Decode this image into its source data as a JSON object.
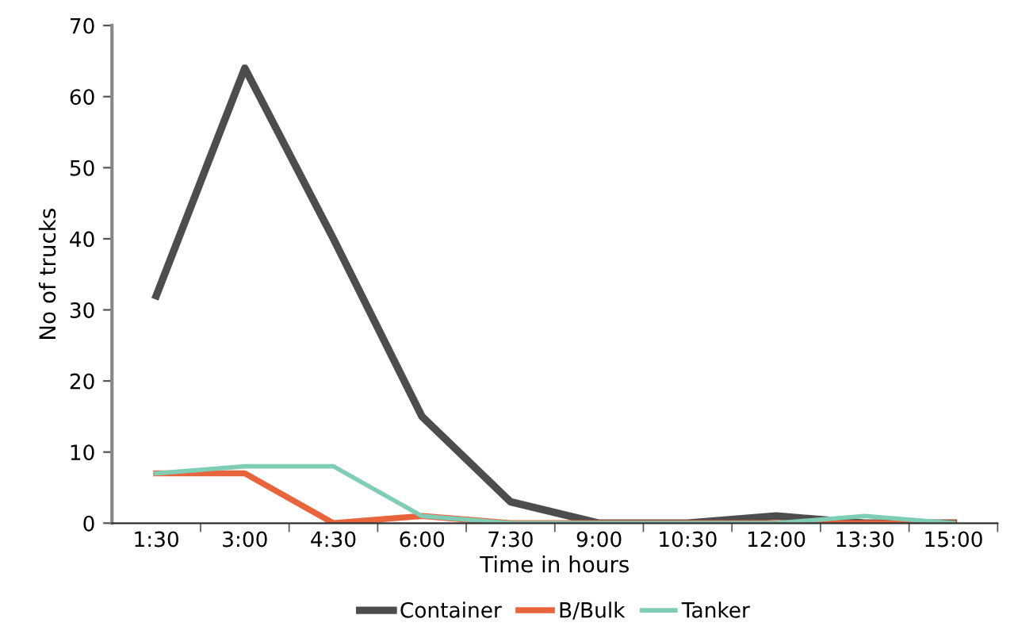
{
  "chart_data": {
    "type": "line",
    "xlabel": "Time in hours",
    "ylabel": "No of trucks",
    "categories": [
      "1:30",
      "3:00",
      "4:30",
      "6:00",
      "7:30",
      "9:00",
      "10:30",
      "12:00",
      "13:30",
      "15:00"
    ],
    "series": [
      {
        "name": "Container",
        "color": "#4d4d4f",
        "values": [
          32,
          64,
          40,
          15,
          3,
          0,
          0,
          1,
          0,
          0
        ]
      },
      {
        "name": "B/Bulk",
        "color": "#e8643c",
        "values": [
          7,
          7,
          0,
          1,
          0,
          0,
          0,
          0,
          0,
          0
        ]
      },
      {
        "name": "Tanker",
        "color": "#7fcdb4",
        "values": [
          7,
          8,
          8,
          1,
          0,
          0,
          0,
          0,
          1,
          0
        ]
      }
    ],
    "ylim": [
      0,
      70
    ],
    "yticks": [
      0,
      10,
      20,
      30,
      40,
      50,
      60,
      70
    ],
    "grid": false,
    "legend": "bottom",
    "marker": "none",
    "line_style": "solid"
  }
}
